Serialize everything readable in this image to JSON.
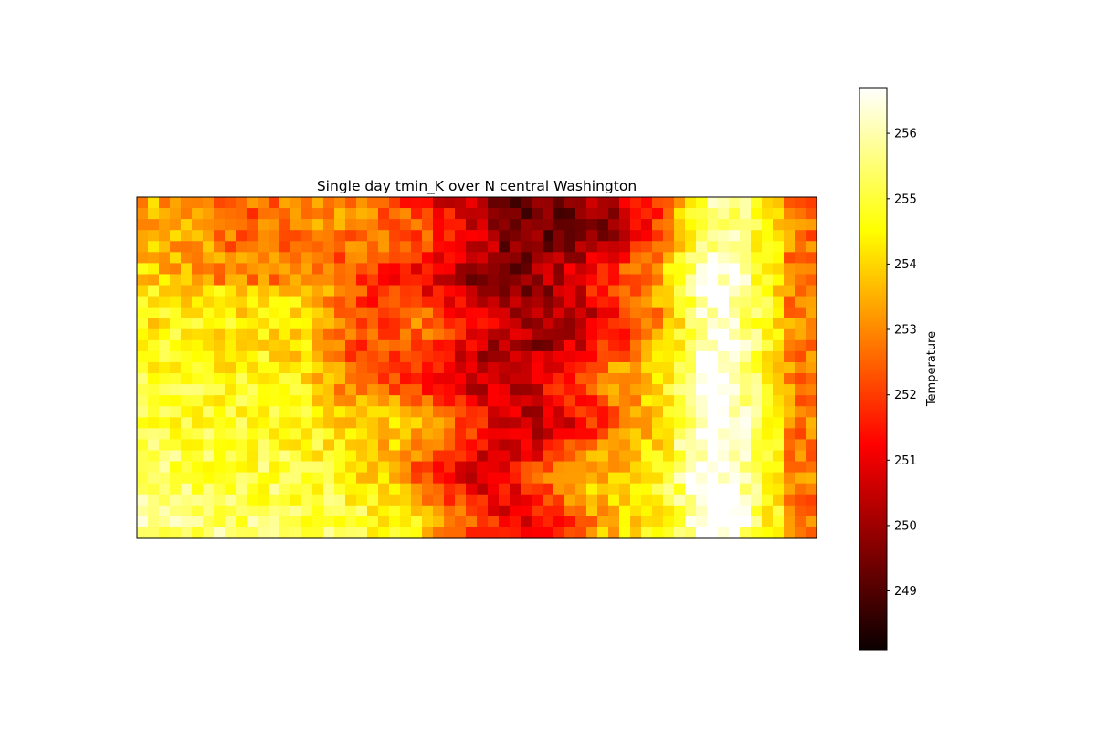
{
  "chart_data": {
    "type": "heatmap",
    "title": "Single day tmin_K over N central Washington",
    "xlabel": "",
    "ylabel": "",
    "colormap": "hot",
    "grid_size": {
      "cols": 62,
      "rows": 31
    },
    "color_range": [
      248.1,
      256.7
    ],
    "colorbar": {
      "label": "Temperature",
      "ticks": [
        249,
        250,
        251,
        252,
        253,
        254,
        255,
        256
      ],
      "tick_labels": [
        "249",
        "250",
        "251",
        "252",
        "253",
        "254",
        "255",
        "256"
      ]
    },
    "axes_ticks_visible": false,
    "grid": false,
    "description_of_field": "Cold core (≈248–250 K) in top-center columns 20–47, warm band (≈255–256.7 K) in right-center columns 48–56, warmer yellows in lower-left; values approximated from the rendered image"
  }
}
